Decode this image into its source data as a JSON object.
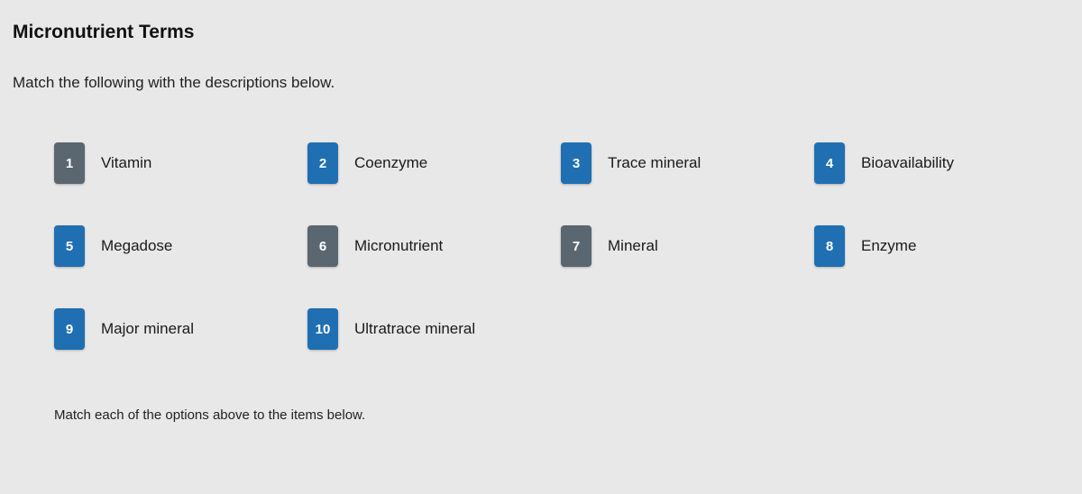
{
  "title": "Micronutrient Terms",
  "instruction": "Match the following with the descriptions below.",
  "footer_instruction": "Match each of the options above to the items below.",
  "badge_colors": {
    "default": "#1f6fb2",
    "special": "#5a6670"
  },
  "items": [
    {
      "num": "1",
      "label": "Vitamin",
      "color": "#5a6670"
    },
    {
      "num": "2",
      "label": "Coenzyme",
      "color": "#1f6fb2"
    },
    {
      "num": "3",
      "label": "Trace mineral",
      "color": "#1f6fb2"
    },
    {
      "num": "4",
      "label": "Bioavailability",
      "color": "#1f6fb2"
    },
    {
      "num": "5",
      "label": "Megadose",
      "color": "#1f6fb2"
    },
    {
      "num": "6",
      "label": "Micronutrient",
      "color": "#5a6670"
    },
    {
      "num": "7",
      "label": "Mineral",
      "color": "#5a6670"
    },
    {
      "num": "8",
      "label": "Enzyme",
      "color": "#1f6fb2"
    },
    {
      "num": "9",
      "label": "Major mineral",
      "color": "#1f6fb2"
    },
    {
      "num": "10",
      "label": "Ultratrace mineral",
      "color": "#1f6fb2"
    }
  ]
}
